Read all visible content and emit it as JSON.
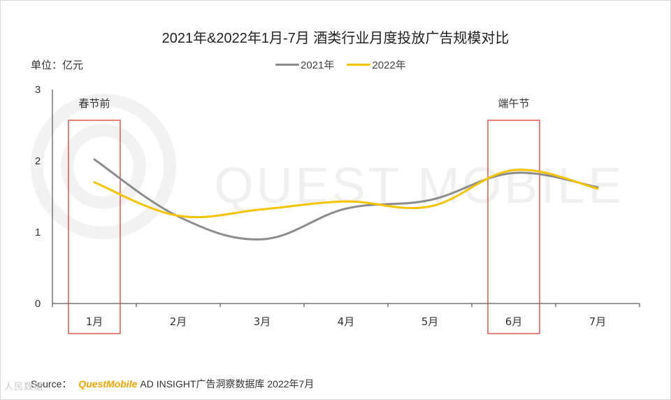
{
  "title": "2021年&2022年1月-7月 酒类行业月度投放广告规模对比",
  "unit_label": "单位：亿元",
  "colors": {
    "series_2021": "#8c8c8c",
    "series_2022": "#f5c400",
    "highlight": "#d93025",
    "axis": "#333333"
  },
  "watermark": "QUEST MOBILE",
  "source": {
    "prefix": "Source：",
    "brand": "QuestMobile",
    "suffix": "AD INSIGHT广告洞察数据库 2022年7月"
  },
  "corner_mark": "人民数据",
  "chart_data": {
    "type": "line",
    "categories": [
      "1月",
      "2月",
      "3月",
      "4月",
      "5月",
      "6月",
      "7月"
    ],
    "series": [
      {
        "name": "2021年",
        "values": [
          2.02,
          1.22,
          0.9,
          1.33,
          1.45,
          1.83,
          1.63
        ]
      },
      {
        "name": "2022年",
        "values": [
          1.7,
          1.23,
          1.32,
          1.43,
          1.36,
          1.87,
          1.61
        ]
      }
    ],
    "ylim": [
      0,
      3
    ],
    "yticks": [
      "0",
      "1",
      "2",
      "3"
    ],
    "grid": false,
    "legend_position": "top-center",
    "highlights": [
      {
        "category": "1月",
        "label": "春节前"
      },
      {
        "category": "6月",
        "label": "端午节"
      }
    ]
  }
}
